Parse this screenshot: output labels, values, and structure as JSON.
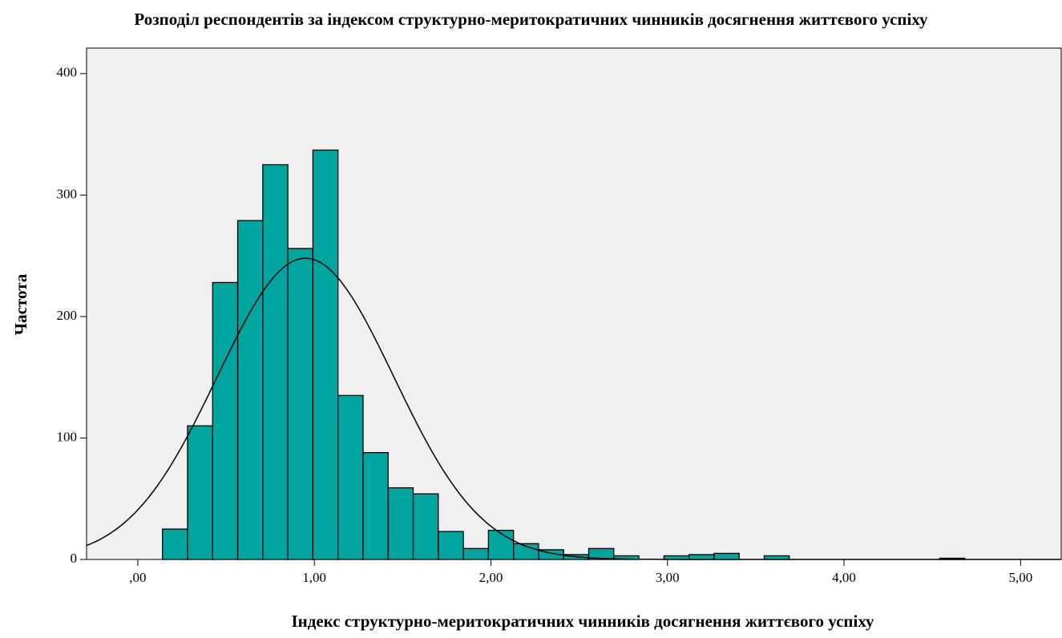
{
  "chart_data": {
    "type": "histogram",
    "title": "Розподіл респондентів за індексом структурно-меритократичних чинників досягнення життєвого успіху",
    "x_label": "Індекс структурно-меритократичних чинників досягнення життєвого успіху",
    "y_label": "Частота",
    "bins": [
      0.14,
      0.282,
      0.424,
      0.566,
      0.708,
      0.85,
      0.992,
      1.134,
      1.276,
      1.418,
      1.56,
      1.702,
      1.844,
      1.986,
      2.128,
      2.27,
      2.412,
      2.554,
      2.696,
      2.838,
      2.98,
      3.122,
      3.264,
      3.406,
      3.548,
      3.69,
      3.832,
      3.974,
      4.116,
      4.258,
      4.4,
      4.542,
      4.684
    ],
    "values": [
      25,
      110,
      228,
      279,
      325,
      256,
      337,
      135,
      88,
      59,
      54,
      23,
      9,
      24,
      13,
      8,
      4,
      9,
      3,
      0,
      3,
      4,
      5,
      0,
      3,
      0,
      0,
      0,
      0,
      0,
      0,
      1
    ],
    "color": "#00a5a0",
    "normal_curve": {
      "mean": 0.95,
      "std": 0.5,
      "peak": 248
    },
    "xlim": [
      -0.29,
      5.23
    ],
    "xticks": [
      {
        "value": 0,
        "label": ",00"
      },
      {
        "value": 1,
        "label": "1,00"
      },
      {
        "value": 2,
        "label": "2,00"
      },
      {
        "value": 3,
        "label": "3,00"
      },
      {
        "value": 4,
        "label": "4,00"
      },
      {
        "value": 5,
        "label": "5,00"
      }
    ],
    "ylim": [
      0,
      421
    ],
    "yticks": [
      0,
      100,
      200,
      300,
      400
    ]
  }
}
